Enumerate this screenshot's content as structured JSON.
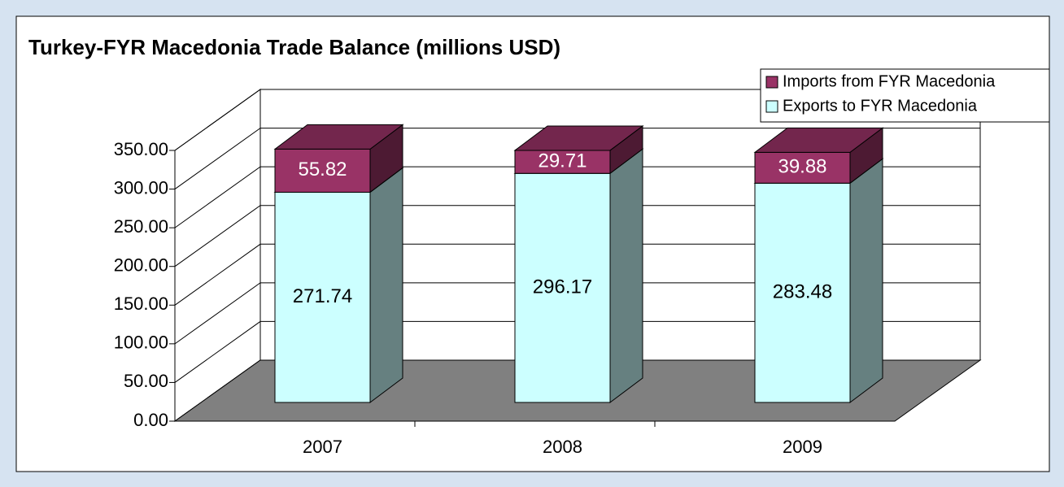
{
  "chart_data": {
    "type": "bar3d_stacked",
    "title": "Turkey-FYR Macedonia Trade Balance (millions USD)",
    "categories": [
      "2007",
      "2008",
      "2009"
    ],
    "series": [
      {
        "name": "Exports to FYR Macedonia",
        "color": "#ccffff",
        "values": [
          271.74,
          296.17,
          283.48
        ]
      },
      {
        "name": "Imports from FYR Macedonia",
        "color": "#993366",
        "values": [
          55.82,
          29.71,
          39.88
        ]
      }
    ],
    "ylim": [
      0,
      350
    ],
    "yticks": [
      {
        "value": 0,
        "label": "0.00"
      },
      {
        "value": 50,
        "label": "50.00"
      },
      {
        "value": 100,
        "label": "100.00"
      },
      {
        "value": 150,
        "label": "150.00"
      },
      {
        "value": 200,
        "label": "200.00"
      },
      {
        "value": 250,
        "label": "250.00"
      },
      {
        "value": 300,
        "label": "300.00"
      },
      {
        "value": 350,
        "label": "350.00"
      }
    ],
    "grid": true,
    "legend": "top-right"
  }
}
